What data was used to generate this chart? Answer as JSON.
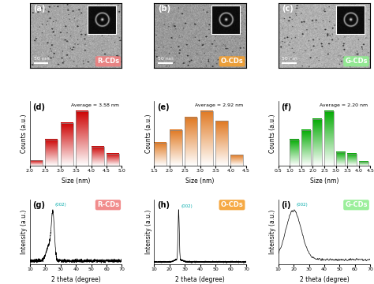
{
  "panel_labels_tem": [
    "(a)",
    "(b)",
    "(c)"
  ],
  "panel_labels_hist": [
    "(d)",
    "(e)",
    "(f)"
  ],
  "panel_labels_xrd": [
    "(g)",
    "(h)",
    "(i)"
  ],
  "cd_labels": [
    "R-CDs",
    "O-CDs",
    "G-CDs"
  ],
  "cd_label_bg_colors": [
    "#f08080",
    "#f5a030",
    "#90ee90"
  ],
  "hist_d": {
    "bins": [
      2.0,
      2.5,
      3.0,
      3.5,
      4.0,
      4.5,
      5.0
    ],
    "heights": [
      0.1,
      0.48,
      0.78,
      1.0,
      0.35,
      0.22
    ],
    "color_top": "#cc0000",
    "color_bottom": "#ffffff",
    "average": "Average = 3.58 nm",
    "xlim": [
      2.0,
      5.0
    ],
    "xticks": [
      2.0,
      2.5,
      3.0,
      3.5,
      4.0,
      4.5,
      5.0
    ]
  },
  "hist_e": {
    "bins": [
      1.5,
      2.0,
      2.5,
      3.0,
      3.5,
      4.0,
      4.5
    ],
    "heights": [
      0.42,
      0.65,
      0.88,
      1.0,
      0.82,
      0.2
    ],
    "color_top": "#e07820",
    "color_bottom": "#ffffff",
    "average": "Average = 2.92 nm",
    "xlim": [
      1.5,
      4.5
    ],
    "xticks": [
      1.5,
      2.0,
      2.5,
      3.0,
      3.5,
      4.0,
      4.5
    ]
  },
  "hist_f": {
    "bins": [
      0.5,
      1.0,
      1.5,
      2.0,
      2.5,
      3.0,
      3.5,
      4.0,
      4.5
    ],
    "heights": [
      0.0,
      0.48,
      0.65,
      0.85,
      1.0,
      0.25,
      0.22,
      0.08
    ],
    "color_top": "#00aa00",
    "color_bottom": "#ffffff",
    "average": "Average = 2.20 nm",
    "xlim": [
      0.5,
      4.5
    ],
    "xticks": [
      0.5,
      1.0,
      1.5,
      2.0,
      2.5,
      3.0,
      3.5,
      4.0,
      4.5
    ]
  },
  "xrd_xlim": [
    10,
    70
  ],
  "xrd_xticks": [
    10,
    20,
    30,
    40,
    50,
    60,
    70
  ],
  "xrd_xlabel": "2 theta (degree)",
  "xrd_ylabel": "Intensity (a.u.)",
  "hist_xlabel": "Size (nm)",
  "hist_ylabel": "Counts (a.u.)"
}
